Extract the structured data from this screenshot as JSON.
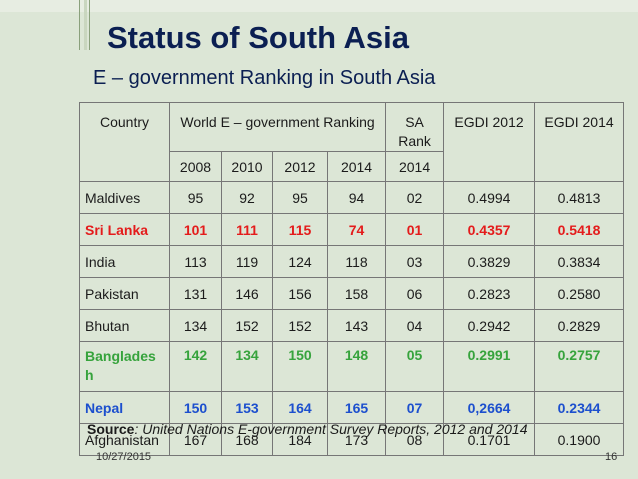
{
  "slide": {
    "title": "Status of South Asia",
    "subtitle": "E – government Ranking in South Asia",
    "date": "10/27/2015",
    "page_number": "16"
  },
  "table": {
    "headers": {
      "country": "Country",
      "world_ranking": "World E – government Ranking",
      "sa_rank": "SA Rank",
      "egdi_2012": "EGDI 2012",
      "egdi_2014": "EGDI 2014"
    },
    "year_headers": [
      "2008",
      "2010",
      "2012",
      "2014",
      "2014"
    ],
    "rows": [
      {
        "country": "Maldives",
        "r2008": "95",
        "r2010": "92",
        "r2012": "95",
        "r2014": "94",
        "sa": "02",
        "egdi2012": "0.4994",
        "egdi2014": "0.4813",
        "highlight": "none"
      },
      {
        "country": "Sri Lanka",
        "r2008": "101",
        "r2010": "111",
        "r2012": "115",
        "r2014": "74",
        "sa": "01",
        "egdi2012": "0.4357",
        "egdi2014": "0.5418",
        "highlight": "red"
      },
      {
        "country": "India",
        "r2008": "113",
        "r2010": "119",
        "r2012": "124",
        "r2014": "118",
        "sa": "03",
        "egdi2012": "0.3829",
        "egdi2014": "0.3834",
        "highlight": "none"
      },
      {
        "country": "Pakistan",
        "r2008": "131",
        "r2010": "146",
        "r2012": "156",
        "r2014": "158",
        "sa": "06",
        "egdi2012": "0.2823",
        "egdi2014": "0.2580",
        "highlight": "none"
      },
      {
        "country": "Bhutan",
        "r2008": "134",
        "r2010": "152",
        "r2012": "152",
        "r2014": "143",
        "sa": "04",
        "egdi2012": "0.2942",
        "egdi2014": "0.2829",
        "highlight": "none"
      },
      {
        "country": "Banglades h",
        "r2008": "142",
        "r2010": "134",
        "r2012": "150",
        "r2014": "148",
        "sa": "05",
        "egdi2012": "0.2991",
        "egdi2014": "0.2757",
        "highlight": "green"
      },
      {
        "country": "Nepal",
        "r2008": "150",
        "r2010": "153",
        "r2012": "164",
        "r2014": "165",
        "sa": "07",
        "egdi2012": "0,2664",
        "egdi2014": "0.2344",
        "highlight": "blue"
      },
      {
        "country": "Afghanistan",
        "r2008": "167",
        "r2010": "168",
        "r2012": "184",
        "r2014": "173",
        "sa": "08",
        "egdi2012": "0.1701",
        "egdi2014": "0.1900",
        "highlight": "none"
      }
    ]
  },
  "source": {
    "label": "Source",
    "text": ": United Nations E-government Survey Reports, 2012 and 2014"
  },
  "colors": {
    "background": "#dce6d6",
    "title": "#0b1f52",
    "highlight_red": "#e41b1b",
    "highlight_green": "#36a33c",
    "highlight_blue": "#1c4fce"
  }
}
